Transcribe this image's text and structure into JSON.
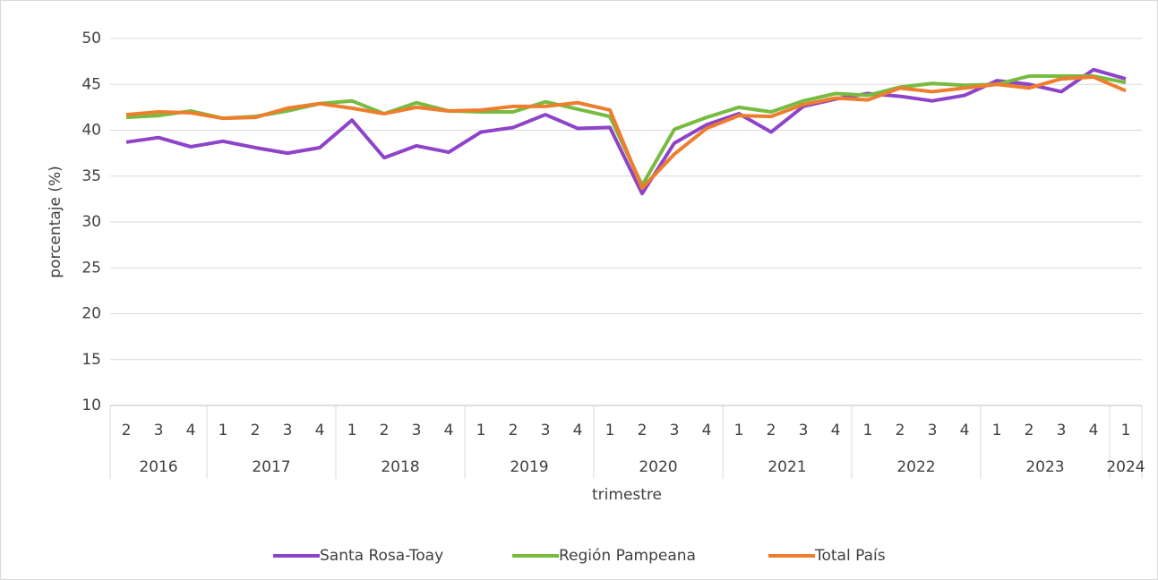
{
  "chart_data": {
    "type": "line",
    "x_label": "trimestre",
    "y_label": "porcentaje (%)",
    "groups": [
      {
        "label": "2016",
        "categories": [
          "2",
          "3",
          "4"
        ]
      },
      {
        "label": "2017",
        "categories": [
          "1",
          "2",
          "3",
          "4"
        ]
      },
      {
        "label": "2018",
        "categories": [
          "1",
          "2",
          "3",
          "4"
        ]
      },
      {
        "label": "2019",
        "categories": [
          "1",
          "2",
          "3",
          "4"
        ]
      },
      {
        "label": "2020",
        "categories": [
          "1",
          "2",
          "3",
          "4"
        ]
      },
      {
        "label": "2021",
        "categories": [
          "1",
          "2",
          "3",
          "4"
        ]
      },
      {
        "label": "2022",
        "categories": [
          "1",
          "2",
          "3",
          "4"
        ]
      },
      {
        "label": "2023",
        "categories": [
          "1",
          "2",
          "3",
          "4"
        ]
      },
      {
        "label": "2024",
        "categories": [
          "1"
        ]
      }
    ],
    "series": [
      {
        "name": "Santa Rosa-Toay",
        "color": "#8e44c8",
        "values": [
          38.7,
          39.2,
          38.2,
          38.8,
          38.1,
          37.5,
          38.1,
          41.1,
          37.0,
          38.3,
          37.6,
          39.8,
          40.3,
          41.7,
          40.2,
          40.3,
          33.1,
          38.6,
          40.6,
          41.8,
          39.8,
          42.6,
          43.4,
          44.0,
          43.7,
          43.2,
          43.8,
          45.4,
          45.0,
          44.2,
          46.6,
          45.6
        ]
      },
      {
        "name": "Región Pampeana",
        "color": "#77bb41",
        "values": [
          41.4,
          41.6,
          42.1,
          41.3,
          41.5,
          42.1,
          42.9,
          43.2,
          41.8,
          43.0,
          42.1,
          42.0,
          42.0,
          43.1,
          42.3,
          41.5,
          34.0,
          40.1,
          41.4,
          42.5,
          42.0,
          43.2,
          44.0,
          43.8,
          44.7,
          45.1,
          44.9,
          45.0,
          45.9,
          45.9,
          45.9,
          45.2
        ]
      },
      {
        "name": "Total País",
        "color": "#ee7d2e",
        "values": [
          41.7,
          42.0,
          41.9,
          41.3,
          41.4,
          42.4,
          42.9,
          42.4,
          41.8,
          42.5,
          42.1,
          42.2,
          42.6,
          42.6,
          43.0,
          42.2,
          33.7,
          37.4,
          40.2,
          41.6,
          41.5,
          42.8,
          43.5,
          43.3,
          44.6,
          44.2,
          44.6,
          45.0,
          44.6,
          45.6,
          45.8,
          44.3
        ]
      }
    ],
    "ylim": [
      10,
      50
    ],
    "yticks": [
      10,
      15,
      20,
      25,
      30,
      35,
      40,
      45,
      50
    ],
    "grid": true,
    "legend": "bottom"
  }
}
